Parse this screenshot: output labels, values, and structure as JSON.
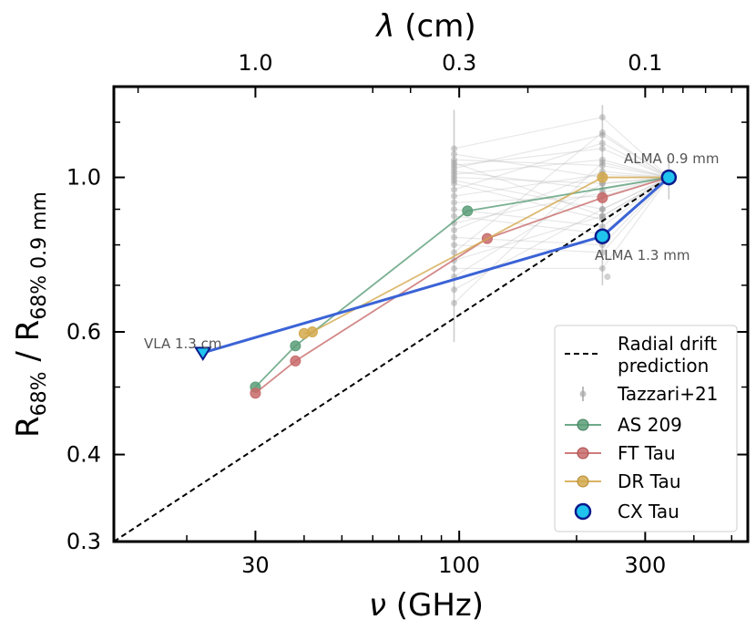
{
  "chart_data": {
    "type": "line",
    "x_axis": {
      "label_symbol": "ν",
      "label_unit": " (GHz)",
      "scale": "log",
      "range": [
        13,
        550
      ],
      "ticks": [
        30,
        100,
        300
      ],
      "tick_labels": [
        "30",
        "100",
        "300"
      ]
    },
    "top_axis": {
      "label_symbol": "λ",
      "label_unit": " (cm)",
      "ticks_cm": [
        1.0,
        0.3,
        0.1
      ],
      "tick_labels": [
        "1.0",
        "0.3",
        "0.1"
      ]
    },
    "y_axis": {
      "label_main": "R",
      "label_sub": "68%",
      "label_sep": " / ",
      "label_sub2": "68% 0.9 mm",
      "scale": "log",
      "range": [
        0.3,
        1.35
      ],
      "ticks": [
        0.3,
        0.4,
        0.6,
        1.0
      ],
      "tick_labels": [
        "0.3",
        "0.4",
        "0.6",
        "1.0"
      ]
    },
    "radial_drift": {
      "name": "Radial drift prediction",
      "x": [
        13,
        345
      ],
      "y": [
        0.3,
        1.0
      ],
      "color": "#000000"
    },
    "tazzari": {
      "name": "Tazzari+21",
      "color": "#999999",
      "x_band_left": 97,
      "x_band_right": 233,
      "x_ref": 345,
      "pairs": [
        [
          1.1,
          1.22
        ],
        [
          1.08,
          1.0
        ],
        [
          1.06,
          1.04
        ],
        [
          1.05,
          0.88
        ],
        [
          1.04,
          1.1
        ],
        [
          1.03,
          1.15
        ],
        [
          1.02,
          0.96
        ],
        [
          1.01,
          1.06
        ],
        [
          1.0,
          0.98
        ],
        [
          0.99,
          0.9
        ],
        [
          0.98,
          0.87
        ],
        [
          0.96,
          1.12
        ],
        [
          0.94,
          1.01
        ],
        [
          0.92,
          0.94
        ],
        [
          0.9,
          0.85
        ],
        [
          0.88,
          0.83
        ],
        [
          0.86,
          0.95
        ],
        [
          0.84,
          1.02
        ],
        [
          0.82,
          0.8
        ],
        [
          0.8,
          0.78
        ],
        [
          0.78,
          1.16
        ],
        [
          0.76,
          0.88
        ],
        [
          0.74,
          0.74
        ],
        [
          0.72,
          0.98
        ],
        [
          0.69,
          0.9
        ],
        [
          0.66,
          1.05
        ]
      ],
      "err_left": [
        0.58,
        1.25
      ],
      "err_right": [
        0.7,
        1.27
      ],
      "err_ref": [
        0.93,
        1.07
      ]
    },
    "series": [
      {
        "name": "AS 209",
        "color": "#5a9e78",
        "x": [
          30,
          38,
          105,
          345
        ],
        "y": [
          0.5,
          0.573,
          0.895,
          1.0
        ]
      },
      {
        "name": "FT Tau",
        "color": "#c86a6a",
        "x": [
          30,
          38,
          118,
          233,
          345
        ],
        "y": [
          0.49,
          0.545,
          0.817,
          0.935,
          1.0
        ]
      },
      {
        "name": "DR Tau",
        "color": "#d4a94e",
        "x": [
          40,
          42,
          233,
          345
        ],
        "y": [
          0.597,
          0.6,
          1.0,
          1.0
        ]
      },
      {
        "name": "CX Tau",
        "color": "#1fc3ee",
        "x": [
          22,
          233,
          345
        ],
        "y": [
          0.56,
          0.823,
          1.0
        ],
        "line_color": "#3b63d6"
      }
    ],
    "annotations": [
      {
        "text": "VLA 1.3 cm",
        "x": 22,
        "y": 0.56
      },
      {
        "text": "ALMA 1.3 mm",
        "x": 233,
        "y": 0.823
      },
      {
        "text": "ALMA 0.9 mm",
        "x": 345,
        "y": 1.0
      }
    ],
    "legend": {
      "location": "lower-right",
      "entries": [
        {
          "label": "Radial drift",
          "label2": "prediction",
          "style": "dashed"
        },
        {
          "label": "Tazzari+21",
          "style": "errorbar"
        },
        {
          "label": "AS 209",
          "style": "line-marker"
        },
        {
          "label": "FT Tau",
          "style": "line-marker"
        },
        {
          "label": "DR Tau",
          "style": "line-marker"
        },
        {
          "label": "CX Tau",
          "style": "marker"
        }
      ]
    }
  }
}
